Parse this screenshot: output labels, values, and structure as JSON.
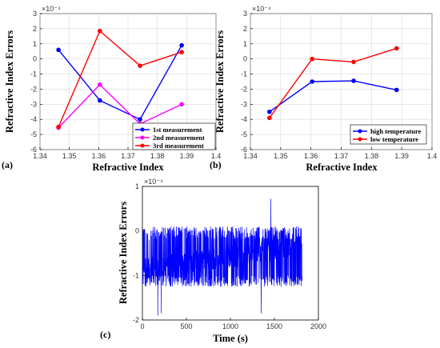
{
  "colors": {
    "blue": "#0000ff",
    "magenta": "#ff00ff",
    "red": "#ff0000",
    "axis": "#000000",
    "grid": "#d9d9d9"
  },
  "chart_data": [
    {
      "panel_label": "(a)",
      "type": "line",
      "xlabel": "Refractive Index",
      "ylabel": "Refractive Index Errors",
      "y_exponent": "×10⁻⁴",
      "xlim": [
        1.34,
        1.4
      ],
      "ylim": [
        -6,
        3
      ],
      "xticks": [
        1.34,
        1.35,
        1.36,
        1.37,
        1.38,
        1.39,
        1.4
      ],
      "xtick_labels": [
        "1.34",
        "1.35",
        "1.36",
        "1.37",
        "1.38",
        "1.39",
        "1.4"
      ],
      "yticks": [
        -6,
        -5,
        -4,
        -3,
        -2,
        -1,
        0,
        1,
        2,
        3
      ],
      "ytick_labels": [
        "-6",
        "-5",
        "-4",
        "-3",
        "-2",
        "-1",
        "0",
        "1",
        "2",
        "3"
      ],
      "grid": true,
      "legend_position": "bottom-right",
      "series": [
        {
          "name": "1st measurement",
          "color": "#0000ff",
          "x": [
            1.3463,
            1.3604,
            1.3741,
            1.3883
          ],
          "y": [
            0.6,
            -2.75,
            -4.0,
            0.9
          ]
        },
        {
          "name": "2nd measurement",
          "color": "#ff00ff",
          "x": [
            1.3463,
            1.3604,
            1.3741,
            1.3883
          ],
          "y": [
            -4.55,
            -1.7,
            -4.3,
            -3.0
          ]
        },
        {
          "name": "3rd measurement",
          "color": "#ff0000",
          "x": [
            1.3463,
            1.3604,
            1.3741,
            1.3883
          ],
          "y": [
            -4.5,
            1.85,
            -0.45,
            0.45
          ]
        }
      ]
    },
    {
      "panel_label": "(b)",
      "type": "line",
      "xlabel": "Refractive Index",
      "ylabel": "Refractive Index Errors",
      "y_exponent": "×10⁻⁴",
      "xlim": [
        1.34,
        1.4
      ],
      "ylim": [
        -6,
        3
      ],
      "xticks": [
        1.34,
        1.35,
        1.36,
        1.37,
        1.38,
        1.39,
        1.4
      ],
      "xtick_labels": [
        "1.34",
        "1.35",
        "1.36",
        "1.37",
        "1.38",
        "1.39",
        "1.4"
      ],
      "yticks": [
        -6,
        -5,
        -4,
        -3,
        -2,
        -1,
        0,
        1,
        2,
        3
      ],
      "ytick_labels": [
        "-6",
        "-5",
        "-4",
        "-3",
        "-2",
        "-1",
        "0",
        "1",
        "2",
        "3"
      ],
      "grid": true,
      "legend_position": "bottom-right",
      "series": [
        {
          "name": "high temperature",
          "color": "#0000ff",
          "x": [
            1.3463,
            1.3604,
            1.3741,
            1.3883
          ],
          "y": [
            -3.5,
            -1.5,
            -1.45,
            -2.05
          ]
        },
        {
          "name": "low temperature",
          "color": "#ff0000",
          "x": [
            1.3463,
            1.3604,
            1.3741,
            1.3883
          ],
          "y": [
            -3.9,
            0.0,
            -0.2,
            0.7
          ]
        }
      ]
    },
    {
      "panel_label": "(c)",
      "type": "line",
      "xlabel": "Time (s)",
      "ylabel": "Refractive Index Errors",
      "y_exponent": "×10⁻⁴",
      "xlim": [
        0,
        2000
      ],
      "ylim": [
        -2,
        1
      ],
      "xticks": [
        0,
        500,
        1000,
        1500,
        2000
      ],
      "xtick_labels": [
        "0",
        "500",
        "1000",
        "1500",
        "2000"
      ],
      "yticks": [
        -2,
        -1,
        0,
        1
      ],
      "ytick_labels": [
        "-2",
        "-1",
        "0",
        "1"
      ],
      "grid": false,
      "series": [
        {
          "color": "#0000ff",
          "description_values": {
            "x_range": [
              0,
              1815
            ],
            "mean_start": -0.85,
            "mean_end": -0.35,
            "typical_band": [
              -1.25,
              0.1
            ],
            "spikes": [
              {
                "x": 175,
                "y": -1.9
              },
              {
                "x": 215,
                "y": -1.85
              },
              {
                "x": 1350,
                "y": -1.85
              },
              {
                "x": 1460,
                "y": 0.72
              }
            ]
          }
        }
      ]
    }
  ]
}
